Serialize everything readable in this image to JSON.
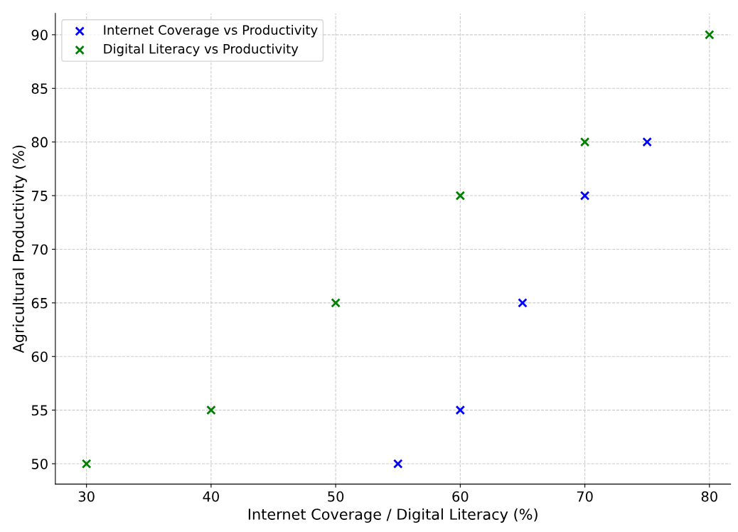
{
  "chart_data": {
    "type": "scatter",
    "xlabel": "Internet Coverage / Digital Literacy (%)",
    "ylabel": "Agricultural Productivity (%)",
    "series": [
      {
        "name": "Internet Coverage vs Productivity",
        "color": "#0000ff",
        "x": [
          55,
          60,
          65,
          70,
          75
        ],
        "values": [
          50,
          55,
          65,
          75,
          80
        ]
      },
      {
        "name": "Digital Literacy vs Productivity",
        "color": "#008000",
        "x": [
          30,
          40,
          50,
          60,
          70,
          80
        ],
        "values": [
          50,
          55,
          65,
          75,
          80,
          90
        ]
      }
    ],
    "xlim": [
      27.5,
      81.7
    ],
    "ylim": [
      48.1,
      92
    ],
    "xticks": [
      30,
      40,
      50,
      60,
      70,
      80
    ],
    "yticks": [
      50,
      55,
      60,
      65,
      70,
      75,
      80,
      85,
      90
    ],
    "grid": true,
    "legend": "top left",
    "marker": "cross"
  }
}
